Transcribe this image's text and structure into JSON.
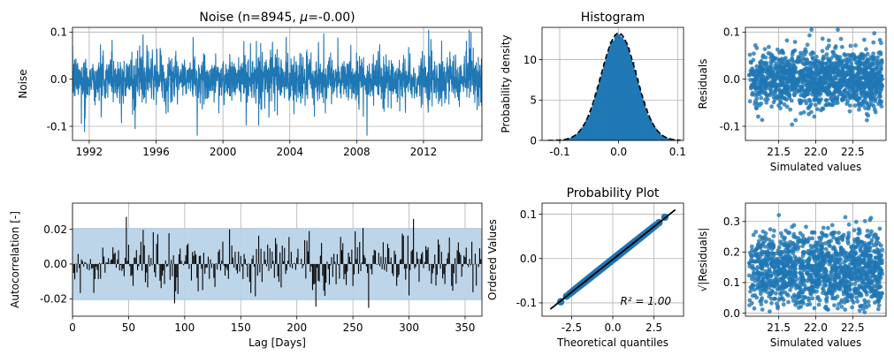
{
  "chart_data": [
    {
      "id": "noise",
      "type": "line",
      "title": "Noise (n=8945, $\\mu$=-0.00)",
      "title_prefix": "Noise (n=8945, ",
      "title_mu": "μ",
      "title_suffix": "=-0.00)",
      "ylabel": "Noise",
      "xlabel": "",
      "xlim": [
        "1991-01-01",
        "2015-06-30"
      ],
      "ylim": [
        -0.13,
        0.11
      ],
      "xticks": [
        "1992",
        "1996",
        "2000",
        "2004",
        "2008",
        "2012"
      ],
      "yticks": [
        "-0.1",
        "0.0",
        "0.1"
      ],
      "n": 8945,
      "mean": -0.0,
      "std": 0.03,
      "grid": true,
      "color": "#1f77b4"
    },
    {
      "id": "histogram",
      "type": "bar",
      "title": "Histogram",
      "ylabel": "Probability density",
      "xlabel": "",
      "xlim": [
        -0.13,
        0.11
      ],
      "ylim": [
        0,
        14
      ],
      "xticks": [
        "-0.1",
        "0.0",
        "0.1"
      ],
      "yticks": [
        "0",
        "5",
        "10"
      ],
      "fit_mean": 0.0,
      "fit_std": 0.03,
      "grid": true,
      "color": "#1f77b4",
      "fit_color": "#000000"
    },
    {
      "id": "residuals",
      "type": "scatter",
      "title": "",
      "ylabel": "Residuals",
      "xlabel": "Simulated values",
      "xlim": [
        21.05,
        22.95
      ],
      "ylim": [
        -0.13,
        0.11
      ],
      "xticks": [
        "21.5",
        "22.0",
        "22.5"
      ],
      "yticks": [
        "-0.1",
        "0.0",
        "0.1"
      ],
      "x_range": [
        21.1,
        22.9
      ],
      "grid": true,
      "color": "#1f77b4"
    },
    {
      "id": "autocorrelation",
      "type": "bar",
      "title": "",
      "ylabel": "Autocorrelation [-]",
      "xlabel": "Lag [Days]",
      "xlim": [
        0,
        365
      ],
      "ylim": [
        -0.03,
        0.035
      ],
      "xticks": [
        "0",
        "50",
        "100",
        "150",
        "200",
        "250",
        "300",
        "350"
      ],
      "yticks": [
        "-0.02",
        "0.00",
        "0.02"
      ],
      "confidence_band": [
        -0.0205,
        0.0205
      ],
      "grid": true,
      "color": "#000000",
      "band_color": "#b9d3e8"
    },
    {
      "id": "probplot",
      "type": "scatter",
      "title": "Probability Plot",
      "ylabel": "Ordered Values",
      "xlabel": "Theoretical quantiles",
      "xlim": [
        -4.3,
        4.3
      ],
      "ylim": [
        -0.13,
        0.125
      ],
      "xticks": [
        "-2.5",
        "0.0",
        "2.5"
      ],
      "yticks": [
        "-0.1",
        "0.0",
        "0.1"
      ],
      "fit_slope": 0.0295,
      "fit_intercept": -0.002,
      "annotation": "R² = 1.00",
      "grid": true,
      "color": "#1f77b4",
      "line_color": "#000000"
    },
    {
      "id": "scale_location",
      "type": "scatter",
      "title": "",
      "ylabel": "√|Residuals|",
      "xlabel": "Simulated values",
      "xlim": [
        21.05,
        22.95
      ],
      "ylim": [
        -0.01,
        0.36
      ],
      "xticks": [
        "21.5",
        "22.0",
        "22.5"
      ],
      "yticks": [
        "0.0",
        "0.1",
        "0.2",
        "0.3"
      ],
      "x_range": [
        21.1,
        22.9
      ],
      "grid": true,
      "color": "#1f77b4"
    }
  ]
}
